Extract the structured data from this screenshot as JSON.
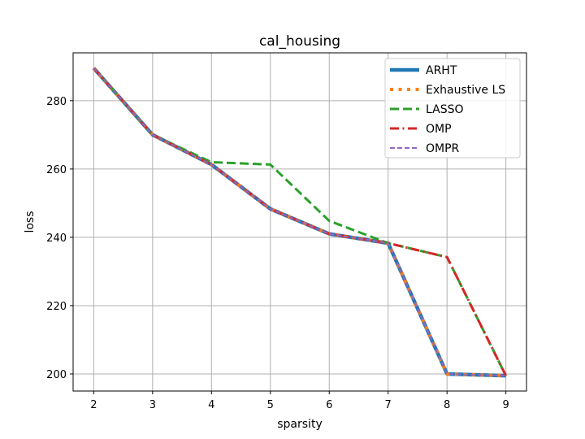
{
  "chart_data": {
    "type": "line",
    "title": "cal_housing",
    "xlabel": "sparsity",
    "ylabel": "loss",
    "x": [
      2,
      3,
      4,
      5,
      6,
      7,
      8,
      9
    ],
    "xlim": [
      1.65,
      9.35
    ],
    "ylim": [
      195,
      294
    ],
    "xticks": [
      "2",
      "3",
      "4",
      "5",
      "6",
      "7",
      "8",
      "9"
    ],
    "yticks": [
      "200",
      "220",
      "240",
      "260",
      "280"
    ],
    "grid": true,
    "legend_position": "top-right",
    "series": [
      {
        "name": "ARHT",
        "color": "#1f77b4",
        "style": "solid",
        "values": [
          289.5,
          270,
          261.3,
          248.3,
          241,
          238.3,
          200,
          199.5
        ]
      },
      {
        "name": "Exhaustive LS",
        "color": "#ff7f0e",
        "style": "dotted",
        "values": [
          289.5,
          270,
          261.3,
          248.3,
          241,
          238.3,
          200,
          199.5
        ]
      },
      {
        "name": "LASSO",
        "color": "#2ca02c",
        "style": "dashed",
        "values": [
          289.5,
          270,
          262,
          261.3,
          244.8,
          238.3,
          234.2,
          199.5
        ]
      },
      {
        "name": "OMP",
        "color": "#d62728",
        "style": "dashdot",
        "values": [
          289.5,
          270,
          261.3,
          248.3,
          241,
          238.3,
          234.2,
          199.5
        ]
      },
      {
        "name": "OMPR",
        "color": "#9467bd",
        "style": "dashed-thin",
        "values": [
          289.5,
          270,
          261.3,
          248.3,
          241,
          238.3,
          200,
          199.5
        ]
      }
    ]
  }
}
